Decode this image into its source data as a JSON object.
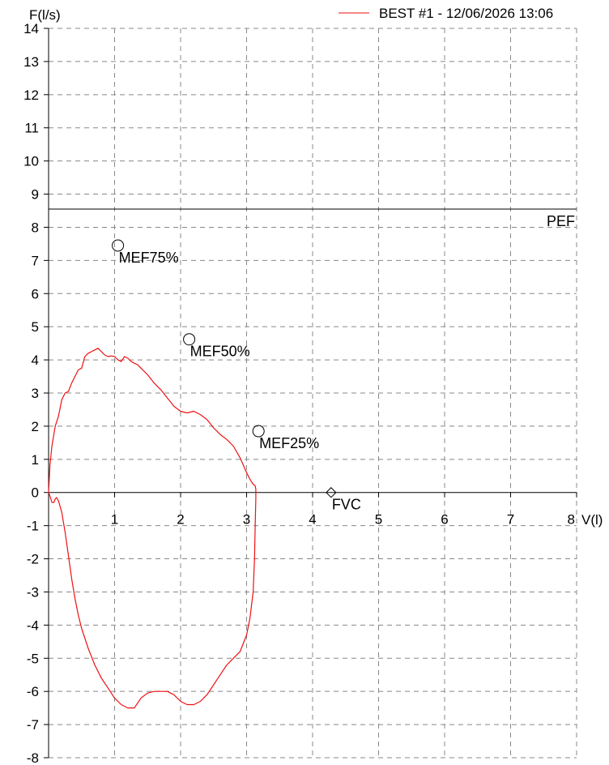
{
  "chart_data": {
    "type": "line",
    "title": "",
    "xlabel": "V(l)",
    "ylabel": "F(l/s)",
    "xlim": [
      0,
      8
    ],
    "ylim": [
      -8,
      14
    ],
    "x_ticks": [
      "1",
      "2",
      "3",
      "4",
      "5",
      "6",
      "7",
      "8"
    ],
    "y_ticks": [
      "14",
      "13",
      "12",
      "11",
      "10",
      "9",
      "8",
      "7",
      "6",
      "5",
      "4",
      "3",
      "2",
      "1",
      "0",
      "-1",
      "-2",
      "-3",
      "-4",
      "-5",
      "-6",
      "-7",
      "-8"
    ],
    "grid": true,
    "legend": {
      "position": "top-right",
      "label": "BEST #1 - 12/06/2026  13:06",
      "color": "#ee1111"
    },
    "reference_line": {
      "label": "PEF",
      "y": 8.55,
      "color": "#000000"
    },
    "annotations": [
      {
        "label": "MEF75%",
        "x": 1.05,
        "y": 7.45,
        "marker": "circle"
      },
      {
        "label": "MEF50%",
        "x": 2.13,
        "y": 4.62,
        "marker": "circle"
      },
      {
        "label": "MEF25%",
        "x": 3.18,
        "y": 1.85,
        "marker": "circle"
      },
      {
        "label": "FVC",
        "x": 4.28,
        "y": 0.0,
        "marker": "diamond"
      }
    ],
    "series": [
      {
        "name": "BEST #1 - 12/06/2026  13:06",
        "color": "#ee1111",
        "x": [
          0.0,
          0.02,
          0.05,
          0.1,
          0.15,
          0.2,
          0.25,
          0.3,
          0.35,
          0.4,
          0.45,
          0.5,
          0.55,
          0.6,
          0.65,
          0.7,
          0.75,
          0.8,
          0.85,
          0.9,
          0.95,
          1.0,
          1.05,
          1.1,
          1.15,
          1.2,
          1.25,
          1.3,
          1.35,
          1.4,
          1.5,
          1.6,
          1.7,
          1.8,
          1.9,
          2.0,
          2.1,
          2.2,
          2.3,
          2.4,
          2.5,
          2.6,
          2.7,
          2.8,
          2.9,
          3.0,
          3.05,
          3.1,
          3.13,
          3.14,
          3.14,
          3.13,
          3.12,
          3.1,
          3.05,
          3.0,
          2.9,
          2.8,
          2.7,
          2.6,
          2.5,
          2.4,
          2.3,
          2.2,
          2.1,
          2.0,
          1.9,
          1.8,
          1.7,
          1.6,
          1.5,
          1.4,
          1.3,
          1.2,
          1.1,
          1.0,
          0.9,
          0.8,
          0.7,
          0.6,
          0.5,
          0.45,
          0.4,
          0.35,
          0.3,
          0.25,
          0.2,
          0.15,
          0.12,
          0.1,
          0.08,
          0.05,
          0.02,
          0.0
        ],
        "y": [
          0.0,
          0.8,
          1.4,
          2.0,
          2.3,
          2.8,
          3.0,
          3.05,
          3.3,
          3.5,
          3.7,
          3.75,
          4.1,
          4.2,
          4.25,
          4.3,
          4.35,
          4.25,
          4.15,
          4.1,
          4.12,
          4.1,
          4.0,
          3.95,
          4.1,
          4.05,
          3.95,
          3.9,
          3.85,
          3.75,
          3.55,
          3.3,
          3.1,
          2.85,
          2.6,
          2.45,
          2.4,
          2.45,
          2.35,
          2.2,
          1.95,
          1.75,
          1.6,
          1.4,
          1.05,
          0.6,
          0.4,
          0.25,
          0.2,
          0.1,
          -0.2,
          -1.0,
          -2.0,
          -3.0,
          -3.8,
          -4.3,
          -4.8,
          -5.0,
          -5.2,
          -5.5,
          -5.8,
          -6.1,
          -6.3,
          -6.4,
          -6.4,
          -6.3,
          -6.1,
          -6.0,
          -6.0,
          -6.0,
          -6.05,
          -6.2,
          -6.5,
          -6.5,
          -6.4,
          -6.2,
          -5.9,
          -5.6,
          -5.2,
          -4.7,
          -4.1,
          -3.7,
          -3.2,
          -2.6,
          -1.9,
          -1.2,
          -0.6,
          -0.25,
          -0.15,
          -0.2,
          -0.3,
          -0.3,
          -0.1,
          0.0
        ]
      }
    ]
  }
}
